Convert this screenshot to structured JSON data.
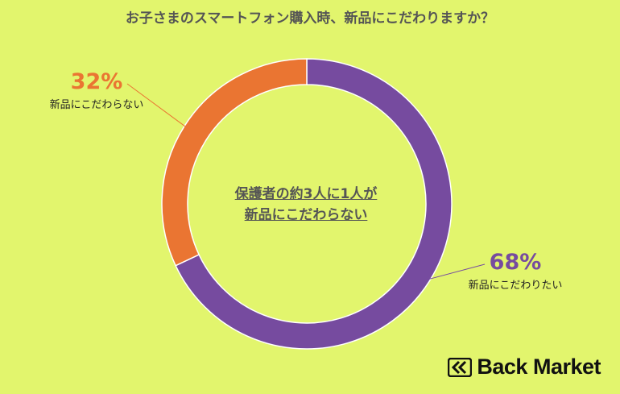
{
  "title": "お子さまのスマートフォン購入時、新品にこだわりますか？",
  "center_text": {
    "line1": "保護者の約3人に1人が",
    "line2": "新品にこだわらない"
  },
  "logo_text": "Back Market",
  "chart_data": {
    "type": "pie",
    "donut": true,
    "title": "お子さまのスマートフォン購入時、新品にこだわりますか？",
    "slices": [
      {
        "label": "新品にこだわりたい",
        "value": 68,
        "value_label": "68%",
        "color": "#764b9f"
      },
      {
        "label": "新品にこだわらない",
        "value": 32,
        "value_label": "32%",
        "color": "#ea7532"
      }
    ],
    "legend": "none"
  },
  "colors": {
    "background": "#e2f56d",
    "purple": "#764b9f",
    "orange": "#ea7532",
    "title_text": "#555555"
  },
  "icons": {
    "logo": "back-market-logo-icon"
  }
}
